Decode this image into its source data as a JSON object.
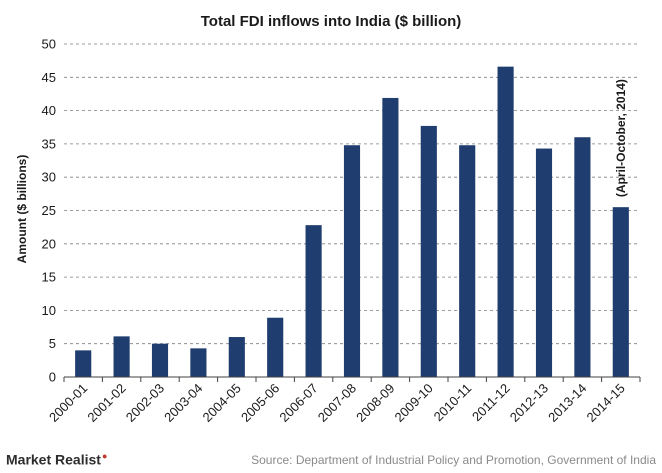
{
  "chart_data": {
    "type": "bar",
    "title": "Total FDI inflows into India ($ billion)",
    "xlabel": "",
    "ylabel": "Amount ($ billions)",
    "ylim": [
      0,
      50
    ],
    "yticks": [
      0,
      5,
      10,
      15,
      20,
      25,
      30,
      35,
      40,
      45,
      50
    ],
    "grid": "horizontal dashed",
    "categories": [
      "2000-01",
      "2001-02",
      "2002-03",
      "2003-04",
      "2004-05",
      "2005-06",
      "2006-07",
      "2007-08",
      "2008-09",
      "2009-10",
      "2010-11",
      "2011-12",
      "2012-13",
      "2013-14",
      "2014-15"
    ],
    "values": [
      4.0,
      6.1,
      5.0,
      4.3,
      6.0,
      8.9,
      22.8,
      34.8,
      41.9,
      37.7,
      34.8,
      46.6,
      34.3,
      36.0,
      25.5
    ],
    "annotations": [
      {
        "category": "2014-15",
        "text": "(April-October, 2014)"
      }
    ],
    "bar_color": "#1f3d6e"
  },
  "footer": {
    "brand": "Market Realist",
    "source": "Source: Department of Industrial Policy and Promotion, Government of India"
  }
}
